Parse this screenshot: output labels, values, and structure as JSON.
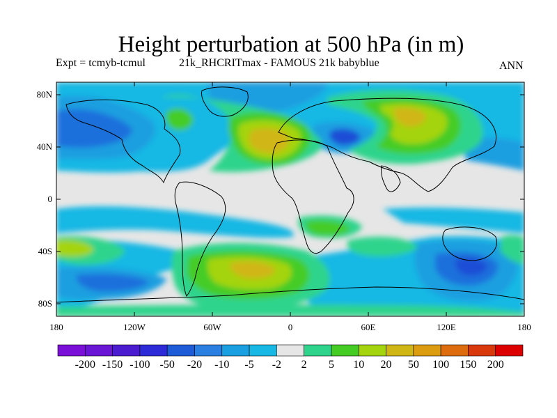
{
  "title": "Height perturbation at 500 hPa (in m)",
  "subtitle_left": "Expt = tcmyb-tcmul",
  "subtitle_mid": "21k_RHCRITmax - FAMOUS 21k babyblue",
  "subtitle_right": "ANN",
  "axes": {
    "lat_ticks": [
      "80N",
      "40N",
      "0",
      "40S",
      "80S"
    ],
    "lon_ticks": [
      "180",
      "120W",
      "60W",
      "0",
      "60E",
      "120E",
      "180"
    ]
  },
  "colorbar": {
    "labels": [
      "-200",
      "-150",
      "-100",
      "-50",
      "-20",
      "-10",
      "-5",
      "-2",
      "2",
      "5",
      "10",
      "20",
      "50",
      "100",
      "150",
      "200"
    ],
    "colors": [
      "#7a10d8",
      "#6a14d6",
      "#4b1bd0",
      "#2d2bd8",
      "#1e5bd6",
      "#2a7fe0",
      "#1a9fe0",
      "#17b8e4",
      "#e6e6e6",
      "#2ed48c",
      "#44cc25",
      "#a4d40e",
      "#d0b614",
      "#dc9c10",
      "#dc6c0e",
      "#d8380c",
      "#dc0000"
    ]
  },
  "map_palette": {
    "background": "#e6e6e6",
    "light_blue": "#17b8e4",
    "mid_blue": "#1a9fe0",
    "blue": "#1e6fdc",
    "dark_blue": "#1e4ed6",
    "green_teal": "#2ed48c",
    "green": "#44cc25",
    "yellow_green": "#a4d40e",
    "gold": "#d0b614",
    "coast": "#000000"
  }
}
